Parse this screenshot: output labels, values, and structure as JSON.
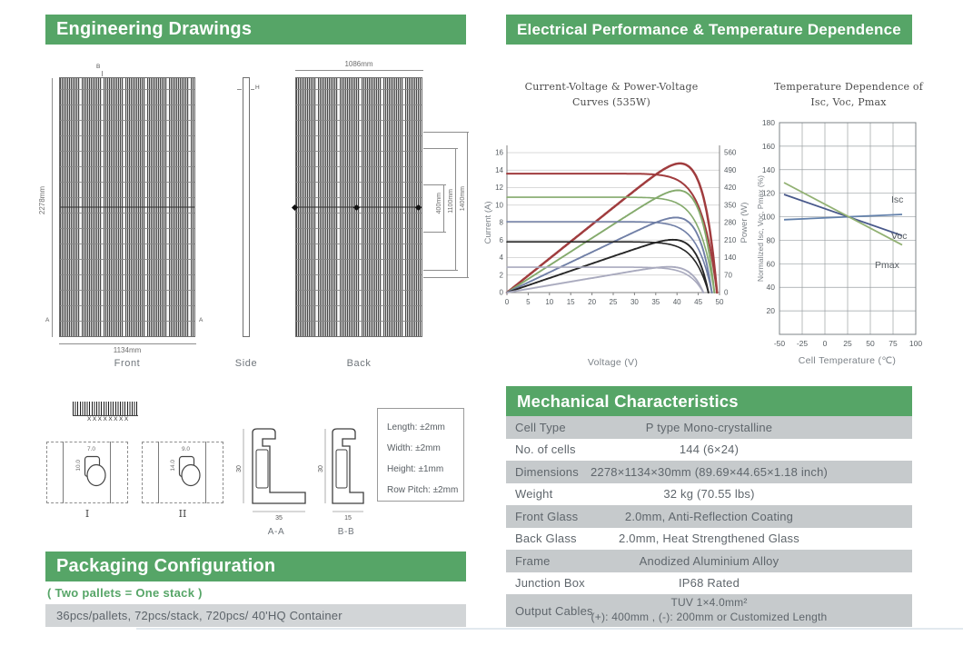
{
  "headers": {
    "engineering": "Engineering Drawings",
    "electrical": "Electrical Performance & Temperature Dependence",
    "mechanical": "Mechanical Characteristics",
    "packaging": "Packaging Configuration"
  },
  "colors": {
    "header_green": "#56a567",
    "table_row_gray": "#c6cacc",
    "packaging_bar_gray": "#d2d5d7",
    "text_gray": "#5f666c"
  },
  "drawings": {
    "front": {
      "caption": "Front",
      "height_dim": "2278mm",
      "width_dim": "1134mm",
      "marker_top": "B",
      "marker_left": "A",
      "marker_right": "A"
    },
    "side": {
      "caption": "Side",
      "marker": "H"
    },
    "back": {
      "caption": "Back",
      "width_dim": "1086mm",
      "dim1": "400mm",
      "dim2": "1100mm",
      "dim3": "1400mm"
    },
    "barcode_label": "XXXXXXXX",
    "detail1": {
      "caption": "I",
      "dim_top": "7.0",
      "dim_left": "10.0"
    },
    "detail2": {
      "caption": "II",
      "dim_top": "9.0",
      "dim_left": "14.0"
    },
    "section_aa": {
      "caption": "A-A",
      "dim_h": "30",
      "dim_w": "35"
    },
    "section_bb": {
      "caption": "B-B",
      "dim_h": "30",
      "dim_w": "15"
    },
    "tolerances": [
      "Length: ±2mm",
      "Width: ±2mm",
      "Height: ±1mm",
      "Row Pitch: ±2mm"
    ]
  },
  "packaging": {
    "note": "( Two pallets = One stack )",
    "line": "36pcs/pallets, 72pcs/stack, 720pcs/ 40'HQ Container"
  },
  "mechanical": {
    "rows": [
      {
        "label": "Cell Type",
        "value": "P type Mono-crystalline"
      },
      {
        "label": "No. of cells",
        "value": "144 (6×24)"
      },
      {
        "label": "Dimensions",
        "value": "2278×1134×30mm (89.69×44.65×1.18 inch)"
      },
      {
        "label": "Weight",
        "value": "32 kg (70.55 lbs)"
      },
      {
        "label": "Front Glass",
        "value": "2.0mm, Anti-Reflection Coating"
      },
      {
        "label": "Back Glass",
        "value": "2.0mm, Heat Strengthened Glass"
      },
      {
        "label": "Frame",
        "value": "Anodized Aluminium Alloy"
      },
      {
        "label": "Junction Box",
        "value": "IP68 Rated"
      },
      {
        "label": "Output Cables",
        "value": "TUV  1×4.0mm²",
        "value2": "(+): 400mm , (-): 200mm or Customized Length"
      }
    ]
  },
  "chart_data": [
    {
      "type": "line",
      "title": "Current-Voltage & Power-Voltage Curves (535W)",
      "xlabel": "Voltage (V)",
      "ylabel_left": "Current (A)",
      "ylabel_right": "Power (W)",
      "xlim": [
        0,
        50
      ],
      "xtick_step": 5,
      "ylim_left": [
        0,
        16
      ],
      "ytick_step_left": 2,
      "ylim_right": [
        0,
        560
      ],
      "ytick_step_right": 70,
      "grid": "horizontal",
      "power_scale": 35,
      "curve_exponent": 14,
      "series": [
        {
          "name": "curve-1",
          "color": "#a03c3e",
          "isc": 13.6,
          "voc": 49.4
        },
        {
          "name": "curve-2",
          "color": "#84aa6c",
          "isc": 10.9,
          "voc": 48.8
        },
        {
          "name": "curve-3",
          "color": "#707fa6",
          "isc": 8.1,
          "voc": 48.2
        },
        {
          "name": "curve-4",
          "color": "#262626",
          "isc": 5.8,
          "voc": 47.4
        },
        {
          "name": "curve-5",
          "color": "#a9aabe",
          "isc": 2.9,
          "voc": 46.2
        }
      ]
    },
    {
      "type": "line",
      "title": "Temperature Dependence of Isc, Voc, Pmax",
      "xlabel": "Cell Temperature (℃)",
      "ylabel": "Normalized Isc, Voc, Pmax (%)",
      "xlim": [
        -50,
        100
      ],
      "xtick_step": 25,
      "ylim": [
        0,
        180
      ],
      "ytick_step": 20,
      "grid": "both",
      "series": [
        {
          "name": "Isc",
          "color": "#6381ab",
          "points": [
            [
              -45,
              97.5
            ],
            [
              85,
              102
            ]
          ]
        },
        {
          "name": "Voc",
          "color": "#49598b",
          "points": [
            [
              -45,
              119
            ],
            [
              85,
              84
            ]
          ]
        },
        {
          "name": "Pmax",
          "color": "#92b173",
          "points": [
            [
              -45,
              129
            ],
            [
              85,
              76
            ]
          ]
        }
      ]
    }
  ]
}
